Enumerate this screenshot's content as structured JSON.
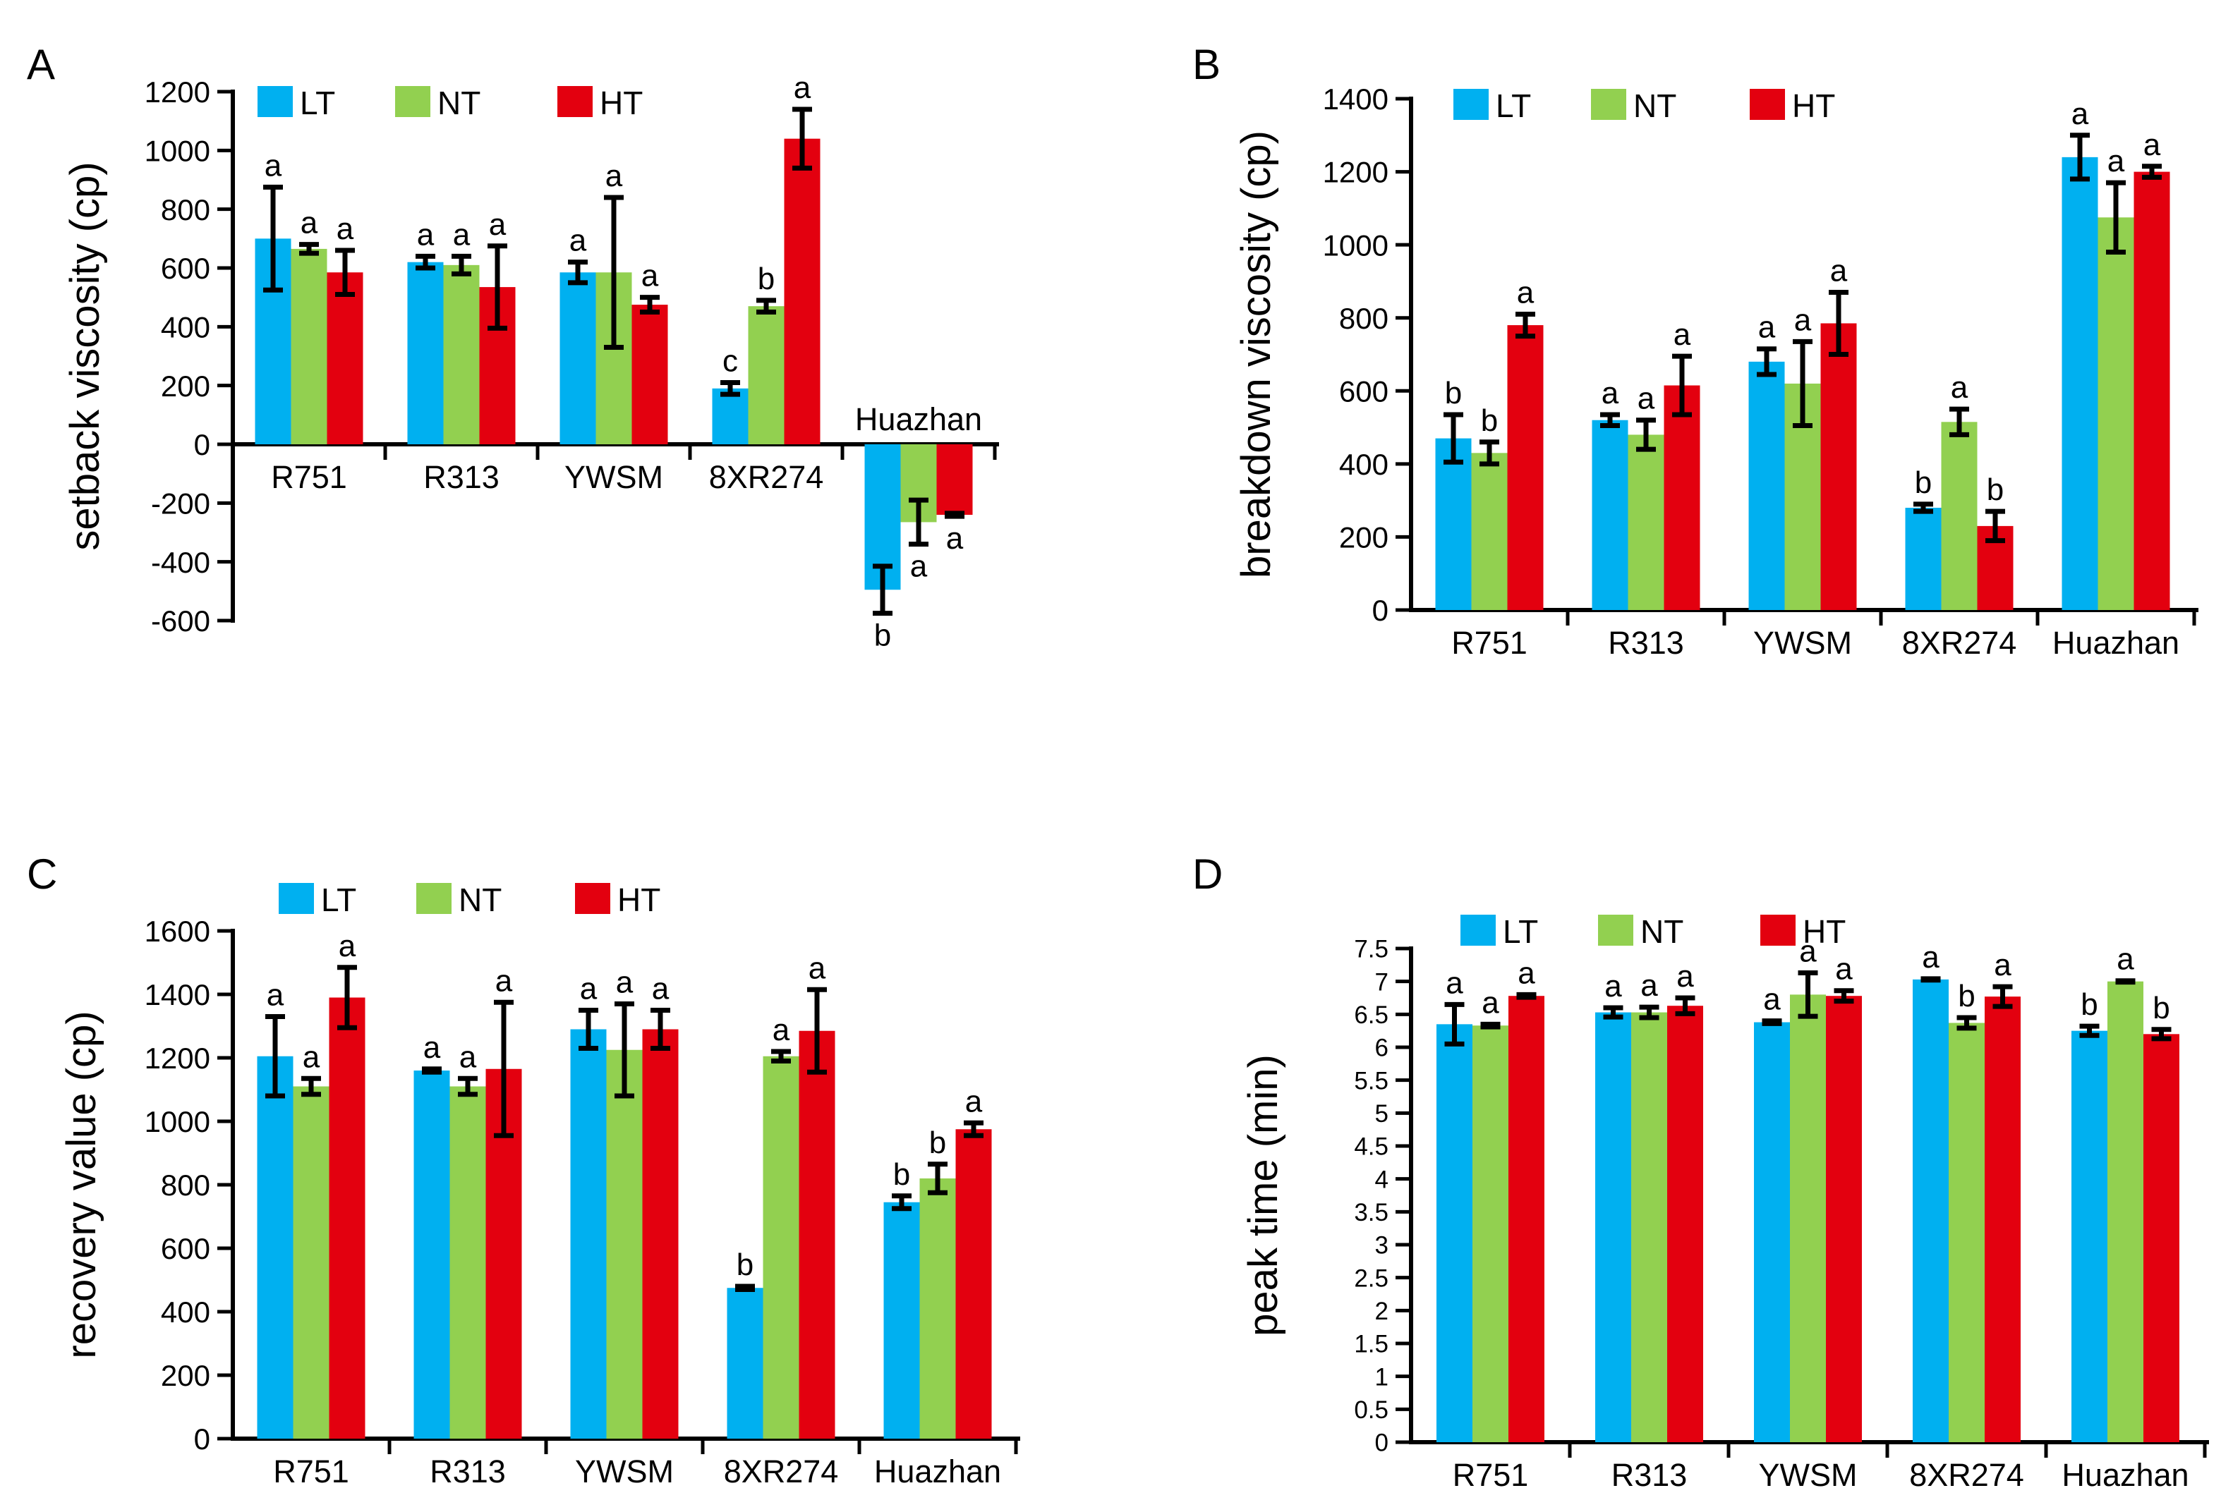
{
  "legend_labels": [
    "LT",
    "NT",
    "HT"
  ],
  "colors": {
    "LT": "#00b0f0",
    "NT": "#92d050",
    "HT": "#e3000f"
  },
  "chart_data": [
    {
      "panel": "A",
      "type": "bar",
      "ylabel": "setback viscosity (cp)",
      "ylim": [
        -600,
        1200
      ],
      "yticks": [
        -600,
        -400,
        -200,
        0,
        200,
        400,
        600,
        800,
        1000,
        1200
      ],
      "categories": [
        "R751",
        "R313",
        "YWSM",
        "8XR274",
        "Huazhan"
      ],
      "category_label_position": "at zero line; Huazhan above",
      "series": [
        {
          "name": "LT",
          "values": [
            700,
            620,
            585,
            190,
            -495
          ],
          "errors": [
            175,
            20,
            35,
            20,
            80
          ],
          "letters": [
            "a",
            "a",
            "a",
            "c",
            "b"
          ]
        },
        {
          "name": "NT",
          "values": [
            665,
            610,
            585,
            470,
            -265
          ],
          "errors": [
            15,
            30,
            255,
            20,
            75
          ],
          "letters": [
            "a",
            "a",
            "a",
            "b",
            "a"
          ]
        },
        {
          "name": "HT",
          "values": [
            585,
            535,
            475,
            1040,
            -240
          ],
          "errors": [
            75,
            140,
            25,
            100,
            5
          ],
          "letters": [
            "a",
            "a",
            "a",
            "a",
            "a"
          ]
        }
      ]
    },
    {
      "panel": "B",
      "type": "bar",
      "ylabel": "breakdown viscosity (cp)",
      "ylim": [
        0,
        1400
      ],
      "yticks": [
        0,
        200,
        400,
        600,
        800,
        1000,
        1200,
        1400
      ],
      "categories": [
        "R751",
        "R313",
        "YWSM",
        "8XR274",
        "Huazhan"
      ],
      "series": [
        {
          "name": "LT",
          "values": [
            470,
            520,
            680,
            280,
            1240
          ],
          "errors": [
            65,
            15,
            35,
            10,
            60
          ],
          "letters": [
            "b",
            "a",
            "a",
            "b",
            "a"
          ]
        },
        {
          "name": "NT",
          "values": [
            430,
            480,
            620,
            515,
            1075
          ],
          "errors": [
            30,
            40,
            115,
            35,
            95
          ],
          "letters": [
            "b",
            "a",
            "a",
            "a",
            "a"
          ]
        },
        {
          "name": "HT",
          "values": [
            780,
            615,
            785,
            230,
            1200
          ],
          "errors": [
            30,
            80,
            85,
            40,
            15
          ],
          "letters": [
            "a",
            "a",
            "a",
            "b",
            "a"
          ]
        }
      ]
    },
    {
      "panel": "C",
      "type": "bar",
      "ylabel": "recovery value (cp)",
      "ylim": [
        0,
        1600
      ],
      "yticks": [
        0,
        200,
        400,
        600,
        800,
        1000,
        1200,
        1400,
        1600
      ],
      "categories": [
        "R751",
        "R313",
        "YWSM",
        "8XR274",
        "Huazhan"
      ],
      "series": [
        {
          "name": "LT",
          "values": [
            1205,
            1160,
            1290,
            475,
            745
          ],
          "errors": [
            125,
            5,
            60,
            5,
            20
          ],
          "letters": [
            "a",
            "a",
            "a",
            "b",
            "b"
          ]
        },
        {
          "name": "NT",
          "values": [
            1110,
            1110,
            1225,
            1205,
            820
          ],
          "errors": [
            25,
            25,
            145,
            15,
            45
          ],
          "letters": [
            "a",
            "a",
            "a",
            "a",
            "b"
          ]
        },
        {
          "name": "HT",
          "values": [
            1390,
            1165,
            1290,
            1285,
            975
          ],
          "errors": [
            95,
            210,
            60,
            130,
            20
          ],
          "letters": [
            "a",
            "a",
            "a",
            "a",
            "a"
          ]
        }
      ]
    },
    {
      "panel": "D",
      "type": "bar",
      "ylabel": "peak time (min)",
      "ylim": [
        0,
        7.5
      ],
      "yticks": [
        0,
        0.5,
        1,
        1.5,
        2,
        2.5,
        3,
        3.5,
        4,
        4.5,
        5,
        5.5,
        6,
        6.5,
        7,
        7.5
      ],
      "categories": [
        "R751",
        "R313",
        "YWSM",
        "8XR274",
        "Huazhan"
      ],
      "series": [
        {
          "name": "LT",
          "values": [
            6.35,
            6.53,
            6.38,
            7.03,
            6.25
          ],
          "errors": [
            0.3,
            0.07,
            0.02,
            0.01,
            0.07
          ],
          "letters": [
            "a",
            "a",
            "a",
            "a",
            "b"
          ]
        },
        {
          "name": "NT",
          "values": [
            6.33,
            6.53,
            6.8,
            6.37,
            7.0
          ],
          "errors": [
            0.02,
            0.08,
            0.33,
            0.08,
            0.01
          ],
          "letters": [
            "a",
            "a",
            "a",
            "b",
            "a"
          ]
        },
        {
          "name": "HT",
          "values": [
            6.78,
            6.63,
            6.78,
            6.77,
            6.2
          ],
          "errors": [
            0.02,
            0.12,
            0.08,
            0.15,
            0.07
          ],
          "letters": [
            "a",
            "a",
            "a",
            "a",
            "b"
          ]
        }
      ]
    }
  ]
}
